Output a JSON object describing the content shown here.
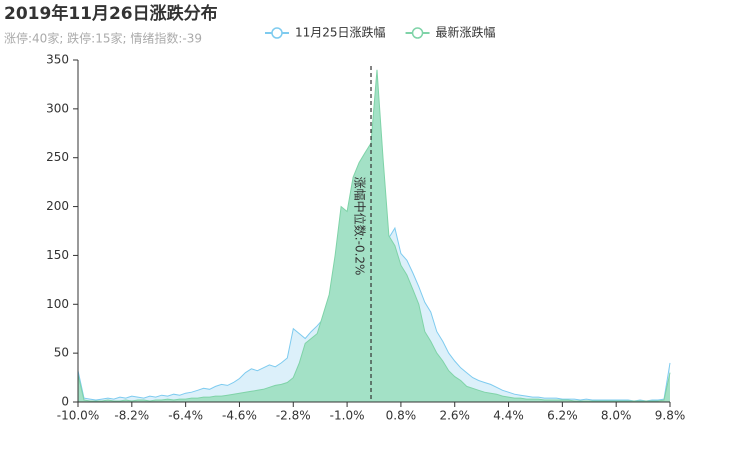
{
  "chart_data": {
    "type": "area",
    "title": "2019年11月26日涨跌分布",
    "subtitle": "涨停:40家; 跌停:15家; 情绪指数:-39",
    "x": [
      -10,
      -9.8,
      -9.6,
      -9.4,
      -9.2,
      -9,
      -8.8,
      -8.6,
      -8.4,
      -8.2,
      -8,
      -7.8,
      -7.6,
      -7.4,
      -7.2,
      -7,
      -6.8,
      -6.6,
      -6.4,
      -6.2,
      -6,
      -5.8,
      -5.6,
      -5.4,
      -5.2,
      -5,
      -4.8,
      -4.6,
      -4.4,
      -4.2,
      -4,
      -3.8,
      -3.6,
      -3.4,
      -3.2,
      -3,
      -2.8,
      -2.6,
      -2.4,
      -2.2,
      -2,
      -1.8,
      -1.6,
      -1.4,
      -1.2,
      -1,
      -0.8,
      -0.6,
      -0.4,
      -0.2,
      0,
      0.2,
      0.4,
      0.6,
      0.8,
      1,
      1.2,
      1.4,
      1.6,
      1.8,
      2,
      2.2,
      2.4,
      2.6,
      2.8,
      3,
      3.2,
      3.4,
      3.6,
      3.8,
      4,
      4.2,
      4.4,
      4.6,
      4.8,
      5,
      5.2,
      5.4,
      5.6,
      5.8,
      6,
      6.2,
      6.4,
      6.6,
      6.8,
      7,
      7.2,
      7.4,
      7.6,
      7.8,
      8,
      8.2,
      8.4,
      8.6,
      8.8,
      9,
      9.2,
      9.4,
      9.6,
      9.8
    ],
    "series": [
      {
        "name": "11月25日涨跌幅",
        "color": "#7ecbef",
        "fill": "#dcf0fa",
        "values": [
          32,
          4,
          3,
          2,
          3,
          4,
          3,
          5,
          4,
          6,
          5,
          4,
          6,
          5,
          7,
          6,
          8,
          7,
          9,
          10,
          12,
          14,
          13,
          16,
          18,
          17,
          20,
          24,
          30,
          34,
          32,
          35,
          38,
          36,
          40,
          45,
          75,
          70,
          65,
          72,
          78,
          85,
          92,
          98,
          105,
          112,
          125,
          140,
          158,
          150,
          162,
          170,
          168,
          178,
          152,
          145,
          132,
          118,
          102,
          92,
          72,
          62,
          50,
          42,
          35,
          30,
          25,
          22,
          20,
          18,
          15,
          12,
          10,
          8,
          7,
          6,
          5,
          5,
          4,
          4,
          4,
          3,
          3,
          3,
          2,
          3,
          2,
          2,
          2,
          2,
          2,
          2,
          2,
          1,
          2,
          1,
          2,
          2,
          3,
          40
        ]
      },
      {
        "name": "最新涨跌幅",
        "color": "#7fd3a8",
        "fill": "#a3e1c6",
        "values": [
          28,
          2,
          1,
          1,
          1,
          2,
          1,
          1,
          2,
          1,
          2,
          2,
          1,
          2,
          2,
          3,
          2,
          3,
          3,
          4,
          4,
          5,
          5,
          6,
          6,
          7,
          8,
          9,
          10,
          11,
          12,
          13,
          15,
          17,
          18,
          20,
          25,
          40,
          60,
          65,
          70,
          90,
          110,
          150,
          200,
          195,
          230,
          245,
          255,
          265,
          340,
          250,
          170,
          160,
          140,
          130,
          115,
          100,
          72,
          62,
          50,
          42,
          32,
          26,
          22,
          16,
          14,
          12,
          10,
          9,
          8,
          6,
          5,
          4,
          4,
          3,
          3,
          3,
          2,
          2,
          2,
          2,
          2,
          1,
          1,
          1,
          1,
          1,
          1,
          1,
          1,
          1,
          1,
          1,
          1,
          1,
          1,
          1,
          2,
          30
        ]
      }
    ],
    "xlim": [
      -10,
      9.8
    ],
    "xticks": [
      {
        "value": -10,
        "label": "-10.0%"
      },
      {
        "value": -8.2,
        "label": "-8.2%"
      },
      {
        "value": -6.4,
        "label": "-6.4%"
      },
      {
        "value": -4.6,
        "label": "-4.6%"
      },
      {
        "value": -2.8,
        "label": "-2.8%"
      },
      {
        "value": -1,
        "label": "-1.0%"
      },
      {
        "value": 0.8,
        "label": "0.8%"
      },
      {
        "value": 2.6,
        "label": "2.6%"
      },
      {
        "value": 4.4,
        "label": "4.4%"
      },
      {
        "value": 6.2,
        "label": "6.2%"
      },
      {
        "value": 8,
        "label": "8.0%"
      },
      {
        "value": 9.8,
        "label": "9.8%"
      }
    ],
    "ylim": [
      0,
      350
    ],
    "yticks": [
      0,
      50,
      100,
      150,
      200,
      250,
      300,
      350
    ],
    "markline": {
      "value": -0.2,
      "label": "涨幅中位数:-0.2%"
    },
    "grid": false
  }
}
